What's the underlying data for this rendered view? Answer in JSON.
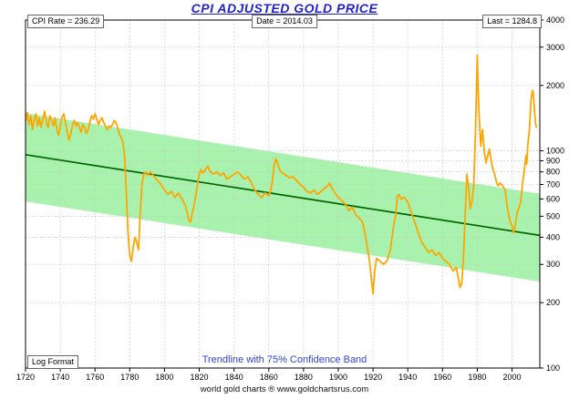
{
  "title": "CPI ADJUSTED GOLD PRICE",
  "header": {
    "cpi_rate": "CPI Rate = 236.29",
    "date": "Date = 2014.03",
    "last": "Last = 1284.8"
  },
  "footer": {
    "log_format": "Log Format",
    "trendline_caption": "Trendline with 75% Confidence Band",
    "source": "world gold charts ® www.goldchartsrus.com"
  },
  "colors": {
    "title": "#2222cc",
    "caption": "#3344cc",
    "price_line": "#FFA500",
    "trendline": "#006600",
    "band": "#A9F2AD",
    "grid": "#c8c8c8",
    "frame": "#000000"
  },
  "chart_data": {
    "type": "line",
    "title": "CPI ADJUSTED GOLD PRICE",
    "xlabel": "",
    "ylabel": "",
    "y_scale": "log",
    "xlim": [
      1720,
      2016
    ],
    "ylim": [
      100,
      4000
    ],
    "x_ticks": [
      1720,
      1740,
      1760,
      1780,
      1800,
      1820,
      1840,
      1860,
      1880,
      1900,
      1920,
      1940,
      1960,
      1980,
      2000
    ],
    "y_ticks": [
      100,
      200,
      300,
      400,
      500,
      600,
      700,
      800,
      900,
      1000,
      2000,
      3000,
      4000
    ],
    "grid": true,
    "legend_position": "none",
    "band": {
      "x": [
        1720,
        2016
      ],
      "top": [
        1490,
        635
      ],
      "bottom": [
        585,
        250
      ]
    },
    "trendline": {
      "name": "Trendline",
      "x": [
        1720,
        2016
      ],
      "y": [
        960,
        408
      ]
    },
    "series": [
      {
        "name": "CPI Adjusted Gold Price",
        "x": [
          1720,
          1721,
          1722,
          1723,
          1724,
          1725,
          1726,
          1727,
          1728,
          1729,
          1730,
          1731,
          1732,
          1733,
          1734,
          1735,
          1736,
          1737,
          1738,
          1739,
          1740,
          1741,
          1742,
          1743,
          1744,
          1745,
          1746,
          1747,
          1748,
          1749,
          1750,
          1751,
          1752,
          1753,
          1754,
          1755,
          1756,
          1757,
          1758,
          1759,
          1760,
          1761,
          1762,
          1763,
          1764,
          1765,
          1766,
          1767,
          1768,
          1769,
          1770,
          1771,
          1772,
          1773,
          1774,
          1775,
          1776,
          1777,
          1778,
          1779,
          1780,
          1781,
          1782,
          1783,
          1784,
          1785,
          1786,
          1787,
          1788,
          1789,
          1790,
          1792,
          1794,
          1796,
          1798,
          1800,
          1802,
          1804,
          1806,
          1808,
          1810,
          1812,
          1813,
          1814,
          1815,
          1816,
          1817,
          1818,
          1819,
          1820,
          1821,
          1822,
          1823,
          1824,
          1825,
          1826,
          1828,
          1830,
          1832,
          1834,
          1836,
          1838,
          1840,
          1842,
          1844,
          1846,
          1848,
          1850,
          1852,
          1854,
          1856,
          1858,
          1860,
          1861,
          1862,
          1863,
          1864,
          1865,
          1866,
          1867,
          1868,
          1869,
          1870,
          1872,
          1874,
          1876,
          1878,
          1880,
          1882,
          1884,
          1886,
          1888,
          1890,
          1892,
          1894,
          1895,
          1896,
          1898,
          1900,
          1902,
          1904,
          1906,
          1908,
          1910,
          1912,
          1914,
          1916,
          1918,
          1919,
          1920,
          1921,
          1922,
          1924,
          1926,
          1928,
          1930,
          1931,
          1932,
          1933,
          1934,
          1935,
          1936,
          1938,
          1940,
          1942,
          1944,
          1946,
          1948,
          1950,
          1952,
          1954,
          1956,
          1958,
          1960,
          1962,
          1964,
          1966,
          1968,
          1970,
          1971,
          1972,
          1973,
          1974,
          1975,
          1976,
          1977,
          1978,
          1979,
          1980,
          1980.5,
          1981,
          1982,
          1983,
          1984,
          1985,
          1986,
          1987,
          1988,
          1989,
          1990,
          1991,
          1992,
          1993,
          1994,
          1995,
          1996,
          1997,
          1998,
          1999,
          2000,
          2001,
          2002,
          2003,
          2004,
          2005,
          2006,
          2007,
          2008,
          2008.5,
          2009,
          2010,
          2011,
          2011.5,
          2012,
          2012.5,
          2013,
          2013.5,
          2014
        ],
        "y": [
          1380,
          1500,
          1320,
          1450,
          1250,
          1400,
          1480,
          1300,
          1420,
          1280,
          1400,
          1520,
          1350,
          1280,
          1450,
          1380,
          1300,
          1420,
          1250,
          1180,
          1300,
          1420,
          1480,
          1350,
          1220,
          1120,
          1200,
          1300,
          1380,
          1300,
          1350,
          1280,
          1220,
          1320,
          1280,
          1200,
          1250,
          1350,
          1450,
          1400,
          1480,
          1400,
          1320,
          1380,
          1420,
          1350,
          1300,
          1250,
          1300,
          1280,
          1320,
          1380,
          1350,
          1280,
          1200,
          1150,
          1100,
          950,
          650,
          420,
          330,
          310,
          360,
          400,
          380,
          350,
          520,
          700,
          780,
          800,
          770,
          800,
          760,
          730,
          700,
          660,
          630,
          650,
          610,
          640,
          600,
          560,
          520,
          480,
          470,
          520,
          560,
          620,
          700,
          780,
          820,
          790,
          810,
          830,
          850,
          810,
          780,
          800,
          770,
          790,
          740,
          760,
          780,
          800,
          770,
          740,
          760,
          710,
          660,
          630,
          610,
          640,
          620,
          650,
          720,
          850,
          920,
          880,
          830,
          800,
          790,
          780,
          770,
          750,
          760,
          730,
          700,
          680,
          650,
          640,
          660,
          630,
          650,
          670,
          690,
          710,
          680,
          640,
          610,
          590,
          570,
          530,
          550,
          510,
          490,
          470,
          390,
          310,
          260,
          220,
          280,
          320,
          310,
          300,
          310,
          350,
          400,
          460,
          500,
          620,
          630,
          600,
          610,
          580,
          520,
          470,
          420,
          380,
          360,
          340,
          350,
          330,
          340,
          320,
          310,
          300,
          280,
          290,
          235,
          245,
          320,
          500,
          780,
          680,
          540,
          590,
          700,
          1250,
          2750,
          1900,
          1500,
          1050,
          1250,
          1000,
          880,
          950,
          1020,
          900,
          820,
          780,
          720,
          690,
          710,
          700,
          680,
          660,
          570,
          510,
          470,
          450,
          420,
          460,
          520,
          550,
          580,
          700,
          810,
          950,
          870,
          1050,
          1250,
          1750,
          1850,
          1900,
          1750,
          1500,
          1350,
          1285
        ]
      }
    ]
  }
}
